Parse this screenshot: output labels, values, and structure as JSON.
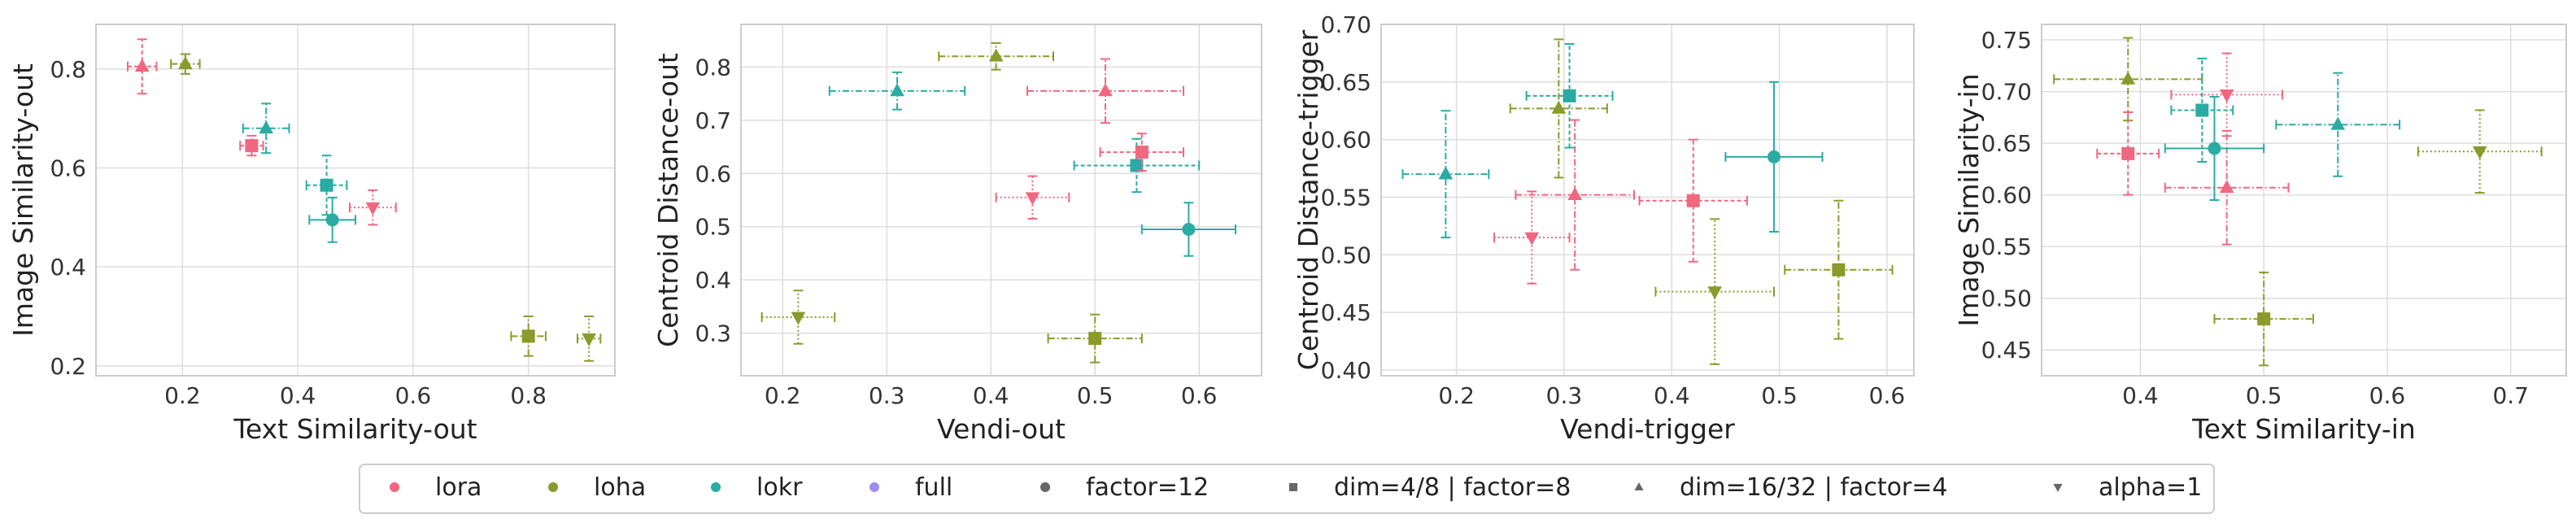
{
  "colors": {
    "lora": "#f0677f",
    "loha": "#8a9a2b",
    "lokr": "#2aaba4",
    "full": "#9b8ef0",
    "neutral": "#666666",
    "grid": "#dddddd",
    "frame": "#cccccc"
  },
  "legend": [
    {
      "label": "lora",
      "marker": "dot",
      "color_key": "lora"
    },
    {
      "label": "loha",
      "marker": "dot",
      "color_key": "loha"
    },
    {
      "label": "lokr",
      "marker": "dot",
      "color_key": "lokr"
    },
    {
      "label": "full",
      "marker": "dot",
      "color_key": "full"
    },
    {
      "label": "factor=12",
      "marker": "dot",
      "color_key": "neutral"
    },
    {
      "label": "dim=4/8 | factor=8",
      "marker": "square",
      "color_key": "neutral"
    },
    {
      "label": "dim=16/32 | factor=4",
      "marker": "triangle-up",
      "color_key": "neutral"
    },
    {
      "label": "alpha=1",
      "marker": "triangle-down",
      "color_key": "neutral"
    }
  ],
  "chart_data": [
    {
      "type": "scatter",
      "xlabel": "Text Similarity-out",
      "ylabel": "Image Similarity-out",
      "xlim": [
        0.05,
        0.95
      ],
      "ylim": [
        0.18,
        0.89
      ],
      "xticks": [
        "0.2",
        "0.4",
        "0.6",
        "0.8"
      ],
      "xtick_values": [
        0.2,
        0.4,
        0.6,
        0.8
      ],
      "yticks": [
        "0.2",
        "0.4",
        "0.6",
        "0.8"
      ],
      "ytick_values": [
        0.2,
        0.4,
        0.6,
        0.8
      ],
      "points": [
        {
          "algo": "lora",
          "marker": "triangle-up",
          "x": 0.13,
          "y": 0.805,
          "xerr": 0.025,
          "yerr": 0.055,
          "line": "5,3"
        },
        {
          "algo": "lora",
          "marker": "square",
          "x": 0.32,
          "y": 0.645,
          "xerr": 0.02,
          "yerr": 0.02,
          "line": "5,3"
        },
        {
          "algo": "lora",
          "marker": "triangle-down",
          "x": 0.53,
          "y": 0.52,
          "xerr": 0.04,
          "yerr": 0.035,
          "line": "2,3"
        },
        {
          "algo": "loha",
          "marker": "triangle-up",
          "x": 0.205,
          "y": 0.81,
          "xerr": 0.025,
          "yerr": 0.02,
          "line": "8,3,2,3"
        },
        {
          "algo": "loha",
          "marker": "square",
          "x": 0.8,
          "y": 0.26,
          "xerr": 0.03,
          "yerr": 0.04,
          "line": "8,3,2,3"
        },
        {
          "algo": "loha",
          "marker": "triangle-down",
          "x": 0.905,
          "y": 0.255,
          "xerr": 0.02,
          "yerr": 0.045,
          "line": "2,3"
        },
        {
          "algo": "lokr",
          "marker": "triangle-up",
          "x": 0.345,
          "y": 0.68,
          "xerr": 0.04,
          "yerr": 0.05,
          "line": "8,3,2,3"
        },
        {
          "algo": "lokr",
          "marker": "square",
          "x": 0.45,
          "y": 0.565,
          "xerr": 0.035,
          "yerr": 0.06,
          "line": "5,3"
        },
        {
          "algo": "lokr",
          "marker": "dot",
          "x": 0.46,
          "y": 0.495,
          "xerr": 0.04,
          "yerr": 0.045,
          "line": ""
        }
      ]
    },
    {
      "type": "scatter",
      "xlabel": "Vendi-out",
      "ylabel": "Centroid Distance-out",
      "xlim": [
        0.16,
        0.66
      ],
      "ylim": [
        0.22,
        0.88
      ],
      "xticks": [
        "0.2",
        "0.3",
        "0.4",
        "0.5",
        "0.6"
      ],
      "xtick_values": [
        0.2,
        0.3,
        0.4,
        0.5,
        0.6
      ],
      "yticks": [
        "0.3",
        "0.4",
        "0.5",
        "0.6",
        "0.7",
        "0.8"
      ],
      "ytick_values": [
        0.3,
        0.4,
        0.5,
        0.6,
        0.7,
        0.8
      ],
      "points": [
        {
          "algo": "loha",
          "marker": "triangle-down",
          "x": 0.215,
          "y": 0.33,
          "xerr": 0.035,
          "yerr": 0.05,
          "line": "2,3"
        },
        {
          "algo": "loha",
          "marker": "triangle-up",
          "x": 0.405,
          "y": 0.82,
          "xerr": 0.055,
          "yerr": 0.025,
          "line": "8,3,2,3"
        },
        {
          "algo": "loha",
          "marker": "square",
          "x": 0.5,
          "y": 0.29,
          "xerr": 0.045,
          "yerr": 0.045,
          "line": "8,3,2,3"
        },
        {
          "algo": "lokr",
          "marker": "triangle-up",
          "x": 0.31,
          "y": 0.755,
          "xerr": 0.065,
          "yerr": 0.035,
          "line": "8,3,2,3"
        },
        {
          "algo": "lokr",
          "marker": "square",
          "x": 0.54,
          "y": 0.615,
          "xerr": 0.06,
          "yerr": 0.05,
          "line": "5,3"
        },
        {
          "algo": "lokr",
          "marker": "dot",
          "x": 0.59,
          "y": 0.495,
          "xerr": 0.045,
          "yerr": 0.05,
          "line": ""
        },
        {
          "algo": "lora",
          "marker": "triangle-up",
          "x": 0.51,
          "y": 0.755,
          "xerr": 0.075,
          "yerr": 0.06,
          "line": "8,3,2,3"
        },
        {
          "algo": "lora",
          "marker": "square",
          "x": 0.545,
          "y": 0.64,
          "xerr": 0.04,
          "yerr": 0.035,
          "line": "5,3"
        },
        {
          "algo": "lora",
          "marker": "triangle-down",
          "x": 0.44,
          "y": 0.555,
          "xerr": 0.035,
          "yerr": 0.04,
          "line": "2,3"
        }
      ]
    },
    {
      "type": "scatter",
      "xlabel": "Vendi-trigger",
      "ylabel": "Centroid Distance-trigger",
      "xlim": [
        0.13,
        0.625
      ],
      "ylim": [
        0.395,
        0.7
      ],
      "xticks": [
        "0.2",
        "0.3",
        "0.4",
        "0.5",
        "0.6"
      ],
      "xtick_values": [
        0.2,
        0.3,
        0.4,
        0.5,
        0.6
      ],
      "yticks": [
        "0.40",
        "0.45",
        "0.50",
        "0.55",
        "0.60",
        "0.65",
        "0.70"
      ],
      "ytick_values": [
        0.4,
        0.45,
        0.5,
        0.55,
        0.6,
        0.65,
        0.7
      ],
      "points": [
        {
          "algo": "lokr",
          "marker": "triangle-up",
          "x": 0.19,
          "y": 0.57,
          "xerr": 0.04,
          "yerr": 0.055,
          "line": "8,3,2,3"
        },
        {
          "algo": "lokr",
          "marker": "square",
          "x": 0.305,
          "y": 0.638,
          "xerr": 0.04,
          "yerr": 0.045,
          "line": "5,3"
        },
        {
          "algo": "lokr",
          "marker": "dot",
          "x": 0.495,
          "y": 0.585,
          "xerr": 0.045,
          "yerr": 0.065,
          "line": ""
        },
        {
          "algo": "loha",
          "marker": "triangle-up",
          "x": 0.295,
          "y": 0.627,
          "xerr": 0.045,
          "yerr": 0.06,
          "line": "8,3,2,3"
        },
        {
          "algo": "loha",
          "marker": "triangle-down",
          "x": 0.44,
          "y": 0.468,
          "xerr": 0.055,
          "yerr": 0.063,
          "line": "2,3"
        },
        {
          "algo": "loha",
          "marker": "square",
          "x": 0.555,
          "y": 0.487,
          "xerr": 0.05,
          "yerr": 0.06,
          "line": "8,3,2,3"
        },
        {
          "algo": "lora",
          "marker": "triangle-down",
          "x": 0.27,
          "y": 0.515,
          "xerr": 0.035,
          "yerr": 0.04,
          "line": "2,3"
        },
        {
          "algo": "lora",
          "marker": "triangle-up",
          "x": 0.31,
          "y": 0.552,
          "xerr": 0.055,
          "yerr": 0.065,
          "line": "8,3,2,3"
        },
        {
          "algo": "lora",
          "marker": "square",
          "x": 0.42,
          "y": 0.547,
          "xerr": 0.05,
          "yerr": 0.053,
          "line": "5,3"
        }
      ]
    },
    {
      "type": "scatter",
      "xlabel": "Text Similarity-in",
      "ylabel": "Image Similarity-in",
      "xlim": [
        0.32,
        0.745
      ],
      "ylim": [
        0.425,
        0.765
      ],
      "xticks": [
        "0.4",
        "0.5",
        "0.6",
        "0.7"
      ],
      "xtick_values": [
        0.4,
        0.5,
        0.6,
        0.7
      ],
      "yticks": [
        "0.45",
        "0.50",
        "0.55",
        "0.60",
        "0.65",
        "0.70",
        "0.75"
      ],
      "ytick_values": [
        0.45,
        0.5,
        0.55,
        0.6,
        0.65,
        0.7,
        0.75
      ],
      "points": [
        {
          "algo": "loha",
          "marker": "triangle-up",
          "x": 0.39,
          "y": 0.712,
          "xerr": 0.06,
          "yerr": 0.04,
          "line": "8,3,2,3"
        },
        {
          "algo": "loha",
          "marker": "square",
          "x": 0.5,
          "y": 0.48,
          "xerr": 0.04,
          "yerr": 0.045,
          "line": "8,3,2,3"
        },
        {
          "algo": "loha",
          "marker": "triangle-down",
          "x": 0.675,
          "y": 0.642,
          "xerr": 0.05,
          "yerr": 0.04,
          "line": "2,3"
        },
        {
          "algo": "lora",
          "marker": "square",
          "x": 0.39,
          "y": 0.64,
          "xerr": 0.025,
          "yerr": 0.04,
          "line": "5,3"
        },
        {
          "algo": "lora",
          "marker": "triangle-down",
          "x": 0.47,
          "y": 0.697,
          "xerr": 0.045,
          "yerr": 0.04,
          "line": "2,3"
        },
        {
          "algo": "lora",
          "marker": "triangle-up",
          "x": 0.47,
          "y": 0.607,
          "xerr": 0.05,
          "yerr": 0.055,
          "line": "8,3,2,3"
        },
        {
          "algo": "lokr",
          "marker": "square",
          "x": 0.45,
          "y": 0.682,
          "xerr": 0.025,
          "yerr": 0.05,
          "line": "5,3"
        },
        {
          "algo": "lokr",
          "marker": "dot",
          "x": 0.46,
          "y": 0.645,
          "xerr": 0.04,
          "yerr": 0.05,
          "line": ""
        },
        {
          "algo": "lokr",
          "marker": "triangle-up",
          "x": 0.56,
          "y": 0.668,
          "xerr": 0.05,
          "yerr": 0.05,
          "line": "8,3,2,3"
        }
      ]
    }
  ]
}
